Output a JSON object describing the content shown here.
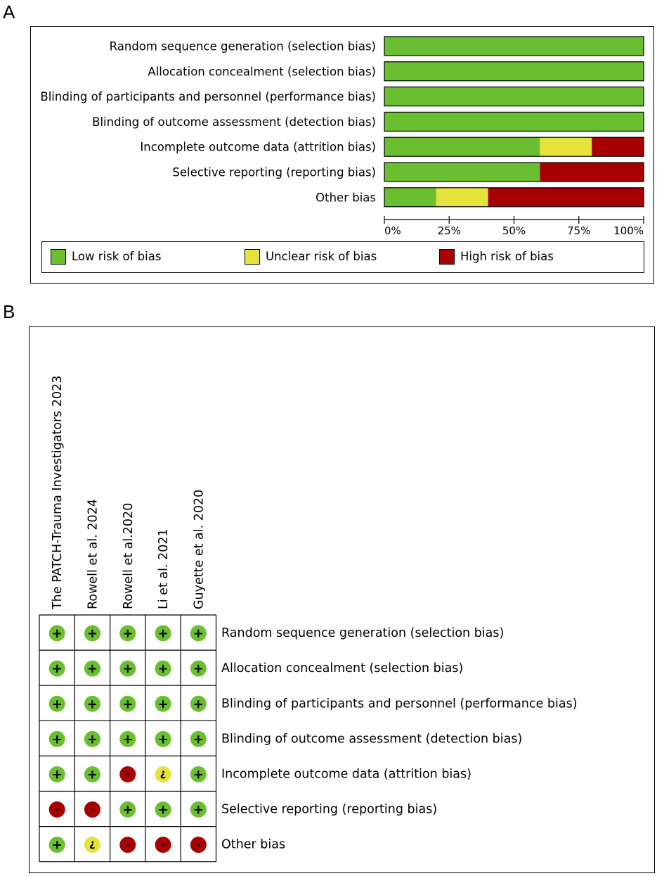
{
  "panels": {
    "a": "A",
    "b": "B"
  },
  "colors": {
    "low": "#6abf30",
    "unclear": "#e6e23c",
    "high": "#a80000"
  },
  "chart_data": [
    {
      "type": "bar",
      "orientation": "horizontal-stacked-percent",
      "categories": [
        "Random sequence generation (selection bias)",
        "Allocation concealment (selection bias)",
        "Blinding of participants and personnel (performance bias)",
        "Blinding of outcome assessment (detection bias)",
        "Incomplete outcome data (attrition bias)",
        "Selective reporting (reporting bias)",
        "Other bias"
      ],
      "series": [
        {
          "name": "Low risk of bias",
          "key": "low",
          "values": [
            100,
            100,
            100,
            100,
            60,
            60,
            20
          ]
        },
        {
          "name": "Unclear risk of bias",
          "key": "unclear",
          "values": [
            0,
            0,
            0,
            0,
            20,
            0,
            20
          ]
        },
        {
          "name": "High risk of bias",
          "key": "high",
          "values": [
            0,
            0,
            0,
            0,
            20,
            40,
            60
          ]
        }
      ],
      "xticks": [
        "0%",
        "25%",
        "50%",
        "75%",
        "100%"
      ],
      "xlim": [
        0,
        100
      ]
    },
    {
      "type": "table",
      "studies": [
        "The PATCH-Trauma Investigators 2023",
        "Rowell et al. 2024",
        "Rowell et al.2020",
        "Li et al. 2021",
        "Guyette et al. 2020"
      ],
      "domains": [
        "Random sequence generation (selection bias)",
        "Allocation concealment (selection bias)",
        "Blinding of participants and personnel (performance bias)",
        "Blinding of outcome assessment (detection bias)",
        "Incomplete outcome data (attrition bias)",
        "Selective reporting (reporting bias)",
        "Other bias"
      ],
      "judgements": [
        [
          "low",
          "low",
          "low",
          "low",
          "low"
        ],
        [
          "low",
          "low",
          "low",
          "low",
          "low"
        ],
        [
          "low",
          "low",
          "low",
          "low",
          "low"
        ],
        [
          "low",
          "low",
          "low",
          "low",
          "low"
        ],
        [
          "low",
          "low",
          "high",
          "unclear",
          "low"
        ],
        [
          "high",
          "high",
          "low",
          "low",
          "low"
        ],
        [
          "low",
          "unclear",
          "high",
          "high",
          "high"
        ]
      ],
      "symbols": {
        "low": "+",
        "unclear": "?",
        "high": "-"
      }
    }
  ]
}
